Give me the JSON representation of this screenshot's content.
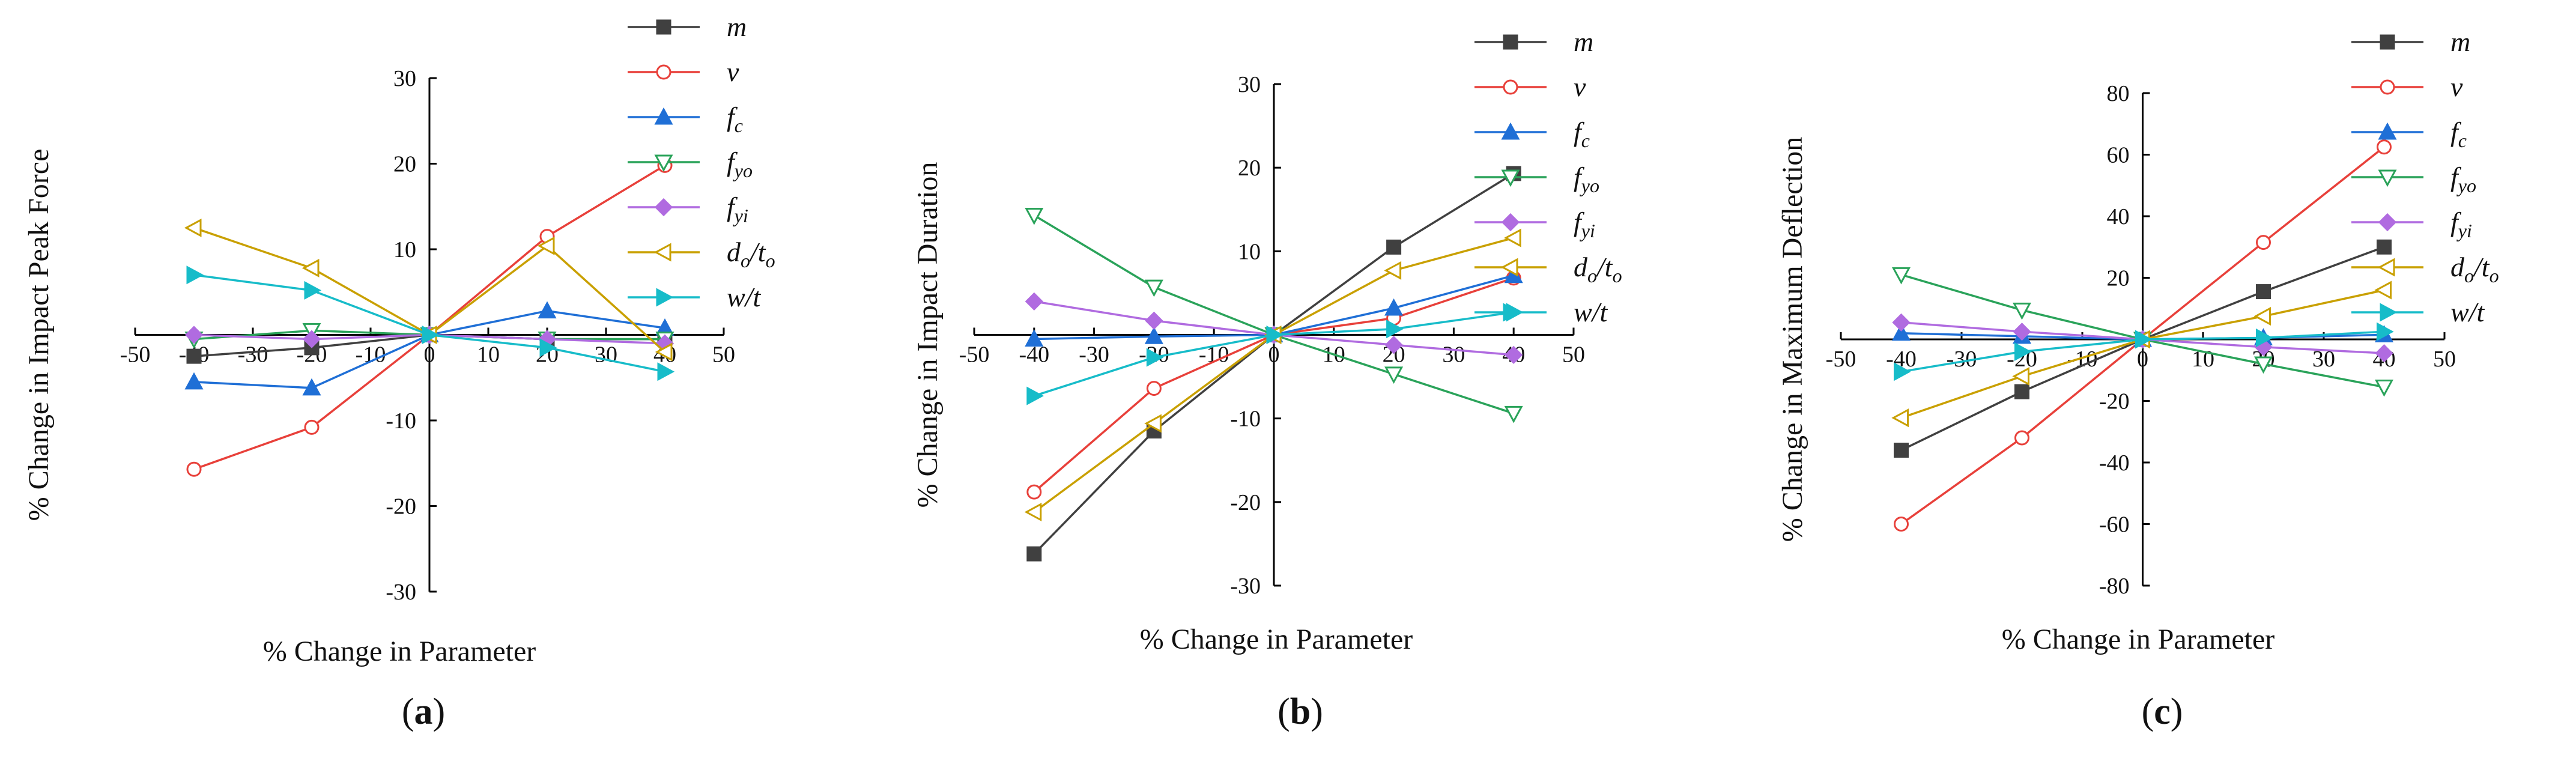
{
  "chart_data": [
    {
      "type": "line",
      "panel_label": "(a)",
      "panel_letter": "a",
      "xlabel": "% Change in Parameter",
      "ylabel": "% Change in Impact Peak Force",
      "x": [
        -40,
        -20,
        0,
        20,
        40
      ],
      "xlim": [
        -50,
        50
      ],
      "ylim": [
        -30,
        30
      ],
      "xticks": [
        -50,
        -40,
        -30,
        -20,
        -10,
        0,
        10,
        20,
        30,
        40,
        50
      ],
      "yticks": [
        -30,
        -20,
        -10,
        0,
        10,
        20,
        30
      ],
      "series": [
        {
          "name": "m",
          "values": [
            -2.5,
            -1.5,
            0,
            -0.5,
            -0.5
          ]
        },
        {
          "name": "v",
          "values": [
            -15.7,
            -10.8,
            0,
            11.5,
            19.8
          ]
        },
        {
          "name": "fc",
          "values": [
            -5.5,
            -6.2,
            0,
            2.8,
            0.8
          ]
        },
        {
          "name": "fyo",
          "values": [
            -0.5,
            0.5,
            0,
            -0.5,
            -0.5
          ]
        },
        {
          "name": "fyi",
          "values": [
            0,
            -0.5,
            0,
            -0.5,
            -1.0
          ]
        },
        {
          "name": "do/to",
          "values": [
            12.5,
            7.8,
            0,
            10.4,
            -2.0
          ]
        },
        {
          "name": "w/t",
          "values": [
            7.0,
            5.2,
            0,
            -1.5,
            -4.3
          ]
        }
      ]
    },
    {
      "type": "line",
      "panel_label": "(b)",
      "panel_letter": "b",
      "xlabel": "% Change in Parameter",
      "ylabel": "% Change in Impact Duration",
      "x": [
        -40,
        -20,
        0,
        20,
        40
      ],
      "xlim": [
        -50,
        50
      ],
      "ylim": [
        -30,
        30
      ],
      "xticks": [
        -50,
        -40,
        -30,
        -20,
        -10,
        0,
        10,
        20,
        30,
        40,
        50
      ],
      "yticks": [
        -30,
        -20,
        -10,
        0,
        10,
        20,
        30
      ],
      "series": [
        {
          "name": "m",
          "values": [
            -26.2,
            -11.5,
            0,
            10.5,
            19.3
          ]
        },
        {
          "name": "v",
          "values": [
            -18.8,
            -6.4,
            0,
            2.0,
            6.8
          ]
        },
        {
          "name": "fc",
          "values": [
            -0.5,
            -0.2,
            0,
            3.2,
            7.1
          ]
        },
        {
          "name": "fyo",
          "values": [
            14.3,
            5.7,
            0,
            -4.7,
            -9.4
          ]
        },
        {
          "name": "fyi",
          "values": [
            4.0,
            1.7,
            0,
            -1.2,
            -2.4
          ]
        },
        {
          "name": "do/to",
          "values": [
            -21.2,
            -10.6,
            0,
            7.7,
            11.6
          ]
        },
        {
          "name": "w/t",
          "values": [
            -7.3,
            -2.7,
            0,
            0.7,
            2.7
          ]
        }
      ]
    },
    {
      "type": "line",
      "panel_label": "(c)",
      "panel_letter": "c",
      "xlabel": "% Change in Parameter",
      "ylabel": "% Change in Maximum Deflection",
      "x": [
        -40,
        -20,
        0,
        20,
        40
      ],
      "xlim": [
        -50,
        50
      ],
      "ylim": [
        -80,
        80
      ],
      "xticks": [
        -50,
        -40,
        -30,
        -20,
        -10,
        0,
        10,
        20,
        30,
        40,
        50
      ],
      "yticks": [
        -80,
        -60,
        -40,
        -20,
        0,
        20,
        40,
        60,
        80
      ],
      "series": [
        {
          "name": "m",
          "values": [
            -36.0,
            -17.0,
            0,
            15.5,
            30.0
          ]
        },
        {
          "name": "v",
          "values": [
            -60.0,
            -32.0,
            0,
            31.5,
            62.5
          ]
        },
        {
          "name": "fc",
          "values": [
            2.0,
            1.0,
            0,
            0.5,
            1.5
          ]
        },
        {
          "name": "fyo",
          "values": [
            21.0,
            9.5,
            0,
            -8.0,
            -15.5
          ]
        },
        {
          "name": "fyi",
          "values": [
            5.5,
            2.5,
            0,
            -2.5,
            -4.5
          ]
        },
        {
          "name": "do/to",
          "values": [
            -25.5,
            -12.0,
            0,
            7.5,
            16.0
          ]
        },
        {
          "name": "w/t",
          "values": [
            -10.5,
            -4.0,
            0,
            0.5,
            2.5
          ]
        }
      ]
    }
  ],
  "legend": [
    {
      "key": "m",
      "main": "m",
      "sub": "",
      "sep": "",
      "main2": "",
      "sub2": "",
      "color": "#404040",
      "marker": "square"
    },
    {
      "key": "v",
      "main": "v",
      "sub": "",
      "sep": "",
      "main2": "",
      "sub2": "",
      "color": "#e8403a",
      "marker": "circle-open"
    },
    {
      "key": "fc",
      "main": "f",
      "sub": "c",
      "sep": "",
      "main2": "",
      "sub2": "",
      "color": "#1f6fd6",
      "marker": "triangle-up"
    },
    {
      "key": "fyo",
      "main": "f",
      "sub": "yo",
      "sep": "",
      "main2": "",
      "sub2": "",
      "color": "#2aa35a",
      "marker": "triangle-down-open"
    },
    {
      "key": "fyi",
      "main": "f",
      "sub": "yi",
      "sep": "",
      "main2": "",
      "sub2": "",
      "color": "#b06be0",
      "marker": "diamond"
    },
    {
      "key": "do/to",
      "main": "d",
      "sub": "o",
      "sep": "/",
      "main2": "t",
      "sub2": "o",
      "color": "#c9a000",
      "marker": "triangle-left-open"
    },
    {
      "key": "w/t",
      "main": "w/t",
      "sub": "",
      "sep": "",
      "main2": "",
      "sub2": "",
      "color": "#17bcc9",
      "marker": "triangle-right"
    }
  ]
}
